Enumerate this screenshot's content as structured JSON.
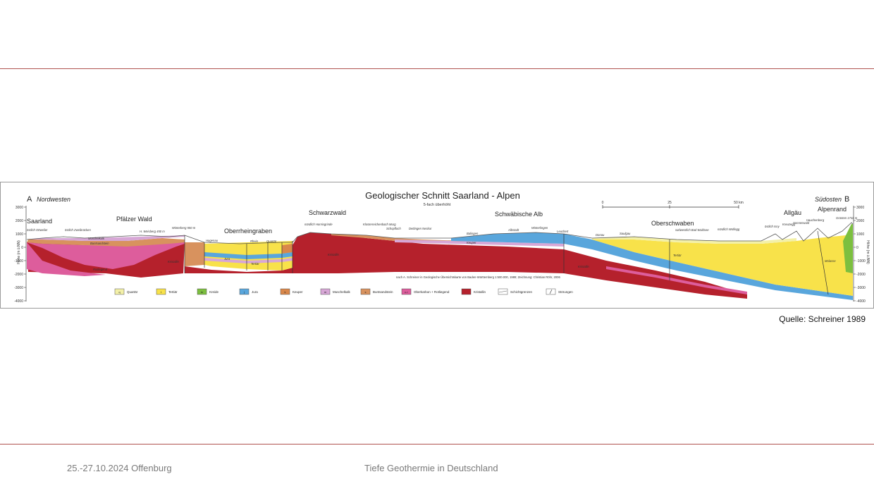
{
  "slide": {
    "source": "Quelle: Schreiner 1989",
    "footer_date": "25.-27.10.2024 Offenburg",
    "footer_title": "Tiefe Geothermie in Deutschland"
  },
  "diagram": {
    "title": "Geologischer Schnitt Saarland - Alpen",
    "subtitle": "5-fach überhöht",
    "end_left_letter": "A",
    "end_left_direction": "Nordwesten",
    "end_right_direction": "Südosten",
    "end_right_letter": "B",
    "y_axis_label": "Höhe (m ü.NN)",
    "y_ticks": [
      "3000",
      "2000",
      "1000",
      "0",
      "-1000",
      "-2000",
      "-3000",
      "-4000"
    ],
    "scale_labels": [
      "0",
      "25",
      "50 km"
    ],
    "regions": [
      "Saarland",
      "Pfälzer Wald",
      "Oberrheingraben",
      "Schwarzwald",
      "Schwäbische Alb",
      "Oberschwaben",
      "Allgäu",
      "Alpenrand"
    ],
    "place_labels": [
      "östlich Ottweiler",
      "östlich Zweibrücken",
      "Muschelkalk",
      "Buntsandstein",
      "Rotliegend",
      "H. Weisberg 450 m",
      "Winterberg 550 m",
      "Hagenau",
      "Rhein",
      "Quartär",
      "Tertiär",
      "Jura",
      "nördlich Hornisgrinde",
      "Klosterreichenbach Murg",
      "Schopfloch",
      "Dettingen Neckar",
      "Balingen",
      "Albstadt",
      "Winterlingen",
      "Leuchert",
      "Donau",
      "Saulgau",
      "südwestlich Bad Waldsee",
      "nördlich Wolfegg",
      "östlich Isny",
      "Kreuzegg",
      "Sonnenwald",
      "Hauchenberg",
      "Grünten 1732 m",
      "Kristallin",
      "Keuper",
      "Molasse"
    ],
    "attribution": "nach A. Schreiner in Geologische Übersichtskarte von Baden-Württemberg 1:500.000, 1989; Zeichnung: Christian Röhr, 2006",
    "legend": [
      {
        "code": "q",
        "label": "Quartär",
        "color": "#f3f0a8"
      },
      {
        "code": "t",
        "label": "Tertiär",
        "color": "#f8e24a"
      },
      {
        "code": "kr",
        "label": "Kreide",
        "color": "#7cbf3f"
      },
      {
        "code": "j",
        "label": "Jura",
        "color": "#59a6dc"
      },
      {
        "code": "k",
        "label": "Keuper",
        "color": "#d9874a"
      },
      {
        "code": "m",
        "label": "Muschelkalk",
        "color": "#d7a7d6"
      },
      {
        "code": "s",
        "label": "Buntsandstein",
        "color": "#d8925e"
      },
      {
        "code": "c-r",
        "label": "Oberkarbon + Rotliegend",
        "color": "#dd5d9c"
      },
      {
        "code": "",
        "label": "Kristallin",
        "color": "#b5212c"
      },
      {
        "code": "",
        "label": "Schichtgrenzen",
        "color": "#ffffff"
      },
      {
        "code": "",
        "label": "Störungen",
        "color": "#ffffff"
      }
    ]
  }
}
